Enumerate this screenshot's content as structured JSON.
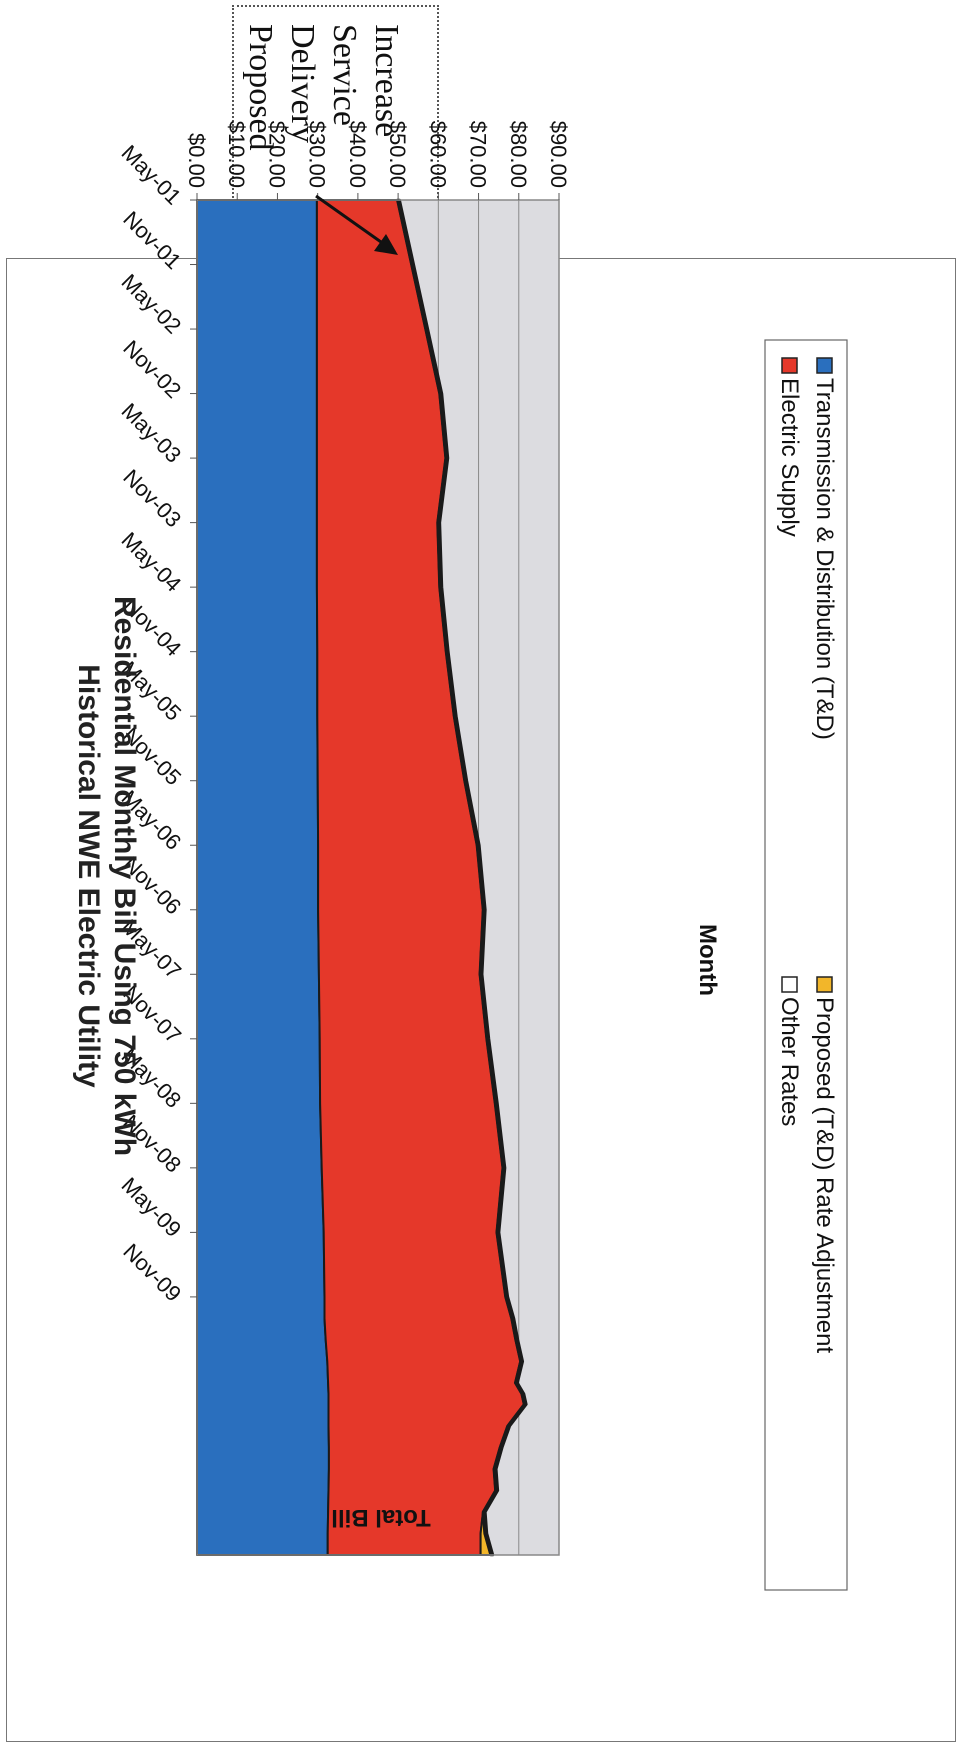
{
  "callout": {
    "lines": [
      "Proposed",
      "Delivery",
      "Service",
      "Increase"
    ]
  },
  "colors": {
    "td": "#2a6fbe",
    "supply": "#e5382a",
    "proposed": "#f2b62a",
    "other": "#dcdce0",
    "outline": "#1a1a1a"
  },
  "chart_data": {
    "type": "area",
    "title": "Historical NWE Electric Utility",
    "subtitle": "Residential Monthly Bill Using 750 kWh",
    "xlabel": "Month",
    "ylabel": "Total Bill",
    "ylim": [
      0,
      90
    ],
    "yticks": [
      "$0.00",
      "$10.00",
      "$20.00",
      "$30.00",
      "$40.00",
      "$50.00",
      "$60.00",
      "$70.00",
      "$80.00",
      "$90.00"
    ],
    "xticks": [
      "May-01",
      "Nov-01",
      "May-02",
      "Nov-02",
      "May-03",
      "Nov-03",
      "May-04",
      "Nov-04",
      "May-05",
      "Nov-05",
      "May-06",
      "Nov-06",
      "May-07",
      "Nov-07",
      "May-08",
      "Nov-08",
      "May-09",
      "Nov-09"
    ],
    "grid": true,
    "legend_position": "bottom",
    "stacked": true,
    "x": [
      0,
      6,
      12,
      18,
      24,
      30,
      36,
      42,
      48,
      54,
      60,
      66,
      72,
      78,
      84,
      90,
      96,
      102,
      104,
      106,
      108,
      110,
      111,
      112,
      114,
      116,
      118,
      120,
      122,
      124,
      126
    ],
    "series": [
      {
        "name": "Transmission & Distribution (T&D)",
        "values": [
          29.8,
          29.8,
          29.8,
          29.8,
          29.8,
          29.8,
          29.8,
          29.9,
          29.9,
          30.0,
          30.1,
          30.1,
          30.3,
          30.5,
          30.6,
          31.0,
          31.5,
          31.7,
          31.7,
          32.0,
          32.4,
          32.6,
          32.7,
          32.7,
          32.7,
          32.8,
          32.8,
          32.7,
          32.6,
          32.5,
          32.5
        ]
      },
      {
        "name": "Electric Supply",
        "values": [
          20.0,
          23.5,
          27.0,
          30.5,
          32.0,
          30.0,
          30.5,
          32.0,
          34.0,
          36.5,
          39.5,
          41.0,
          40.0,
          41.5,
          43.5,
          45.0,
          43.0,
          45.0,
          46.5,
          47.2,
          48.0,
          46.5,
          48.0,
          48.6,
          44.5,
          42.5,
          41.0,
          41.5,
          38.5,
          38.0,
          38.0
        ]
      },
      {
        "name": "Proposed (T&D) Rate Adjustment",
        "values": [
          0,
          0,
          0,
          0,
          0,
          0,
          0,
          0,
          0,
          0,
          0,
          0,
          0,
          0,
          0,
          0,
          0,
          0,
          0,
          0,
          0,
          0,
          0,
          0,
          0,
          0,
          0,
          0,
          0,
          1.0,
          2.5
        ]
      },
      {
        "name": "Other Rates",
        "values": [
          0.6,
          0.6,
          0.6,
          0.6,
          0.6,
          0.6,
          0.6,
          0.6,
          0.6,
          0.6,
          0.6,
          0.6,
          0.6,
          0.6,
          0.6,
          0.6,
          0.6,
          0.6,
          0.6,
          0.6,
          0.6,
          0.6,
          0.6,
          0.6,
          0.6,
          0.6,
          0.6,
          0.6,
          0.6,
          0.6,
          0.6
        ]
      }
    ]
  }
}
